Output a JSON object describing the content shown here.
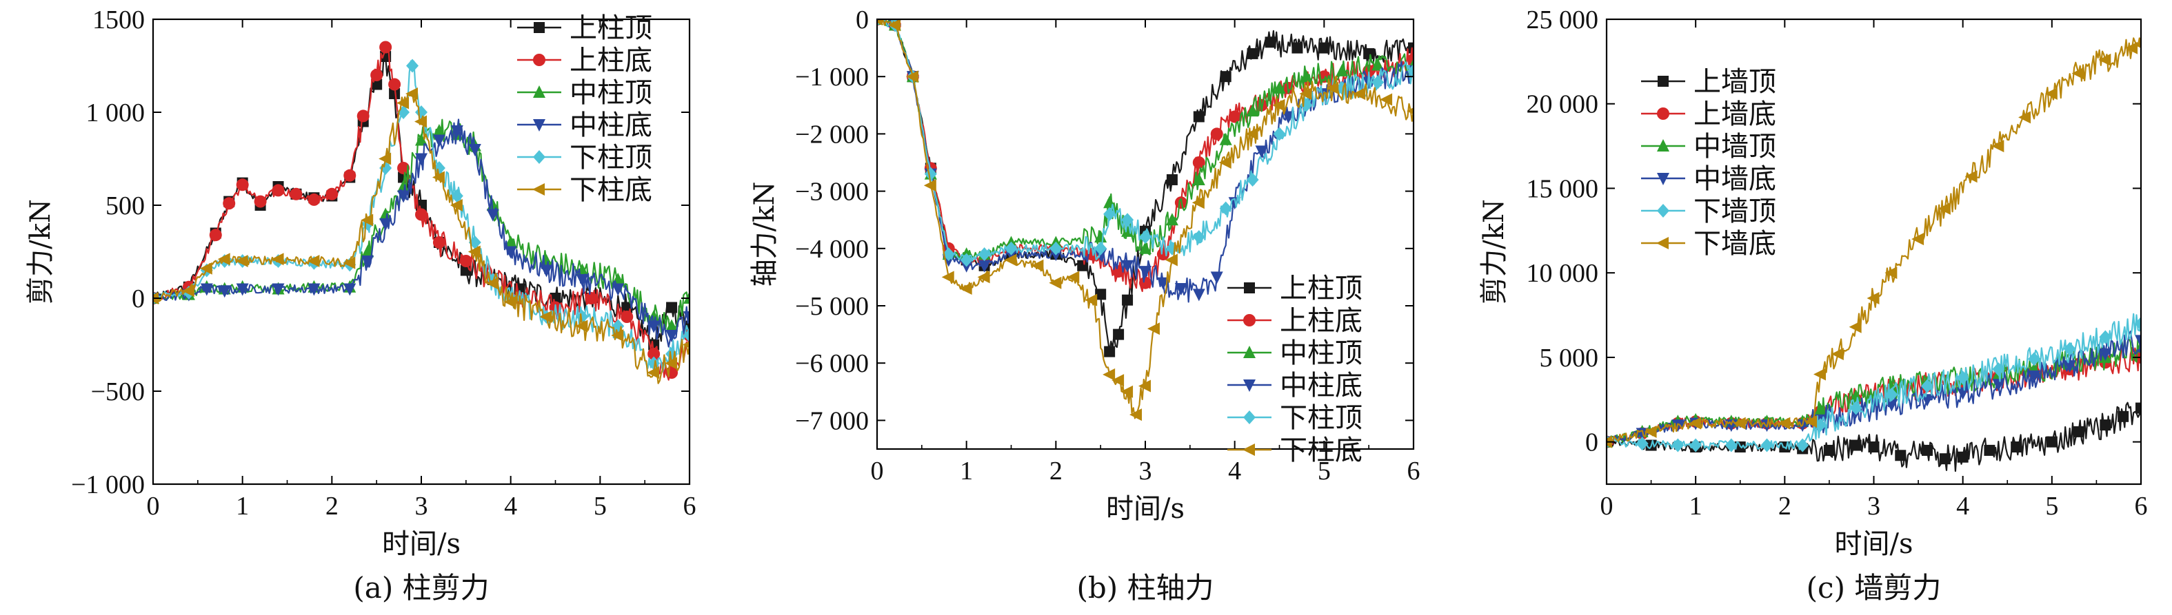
{
  "chart_data": [
    {
      "type": "line",
      "caption": "(a) 柱剪力",
      "xlabel": "时间/s",
      "ylabel": "剪力/kN",
      "xlim": [
        0,
        6
      ],
      "ylim": [
        -1000,
        1500
      ],
      "x_ticks": [
        0,
        1,
        2,
        3,
        4,
        5,
        6
      ],
      "x_tick_labels": [
        "0",
        "1",
        "2",
        "3",
        "4",
        "5",
        "6"
      ],
      "y_ticks": [
        -1000,
        -500,
        0,
        500,
        1000,
        1500
      ],
      "y_tick_labels": [
        "−1 000",
        "−500",
        "0",
        "500",
        "1 000",
        "1500"
      ],
      "legend_position": "top-right",
      "series": [
        {
          "name": "上柱顶",
          "color": "#1a1a1a",
          "marker": "square",
          "x": [
            0,
            0.4,
            0.7,
            0.85,
            1.0,
            1.2,
            1.4,
            1.6,
            1.8,
            2.0,
            2.2,
            2.35,
            2.5,
            2.6,
            2.7,
            2.8,
            3.0,
            3.2,
            3.5,
            3.8,
            4.1,
            4.5,
            4.9,
            5.3,
            5.6,
            5.8,
            6.0
          ],
          "y": [
            0,
            60,
            350,
            520,
            620,
            500,
            600,
            560,
            540,
            550,
            650,
            950,
            1150,
            1300,
            1100,
            650,
            500,
            300,
            150,
            100,
            50,
            0,
            0,
            -50,
            -250,
            -50,
            -150
          ]
        },
        {
          "name": "上柱底",
          "color": "#d62728",
          "marker": "circle",
          "x": [
            0,
            0.4,
            0.7,
            0.85,
            1.0,
            1.2,
            1.4,
            1.6,
            1.8,
            2.0,
            2.2,
            2.35,
            2.5,
            2.6,
            2.7,
            2.8,
            3.0,
            3.2,
            3.5,
            3.8,
            4.1,
            4.5,
            4.9,
            5.3,
            5.6,
            5.8,
            6.0
          ],
          "y": [
            0,
            60,
            340,
            510,
            610,
            520,
            580,
            560,
            530,
            560,
            660,
            980,
            1200,
            1350,
            1150,
            700,
            450,
            300,
            200,
            100,
            0,
            -50,
            0,
            -100,
            -300,
            -400,
            -200
          ]
        },
        {
          "name": "中柱顶",
          "color": "#2ca02c",
          "marker": "triangle-up",
          "x": [
            0,
            0.4,
            0.6,
            0.8,
            1.0,
            1.4,
            1.8,
            2.2,
            2.4,
            2.6,
            2.8,
            3.0,
            3.2,
            3.4,
            3.6,
            3.8,
            4.0,
            4.4,
            4.8,
            5.2,
            5.6,
            5.8,
            6.0
          ],
          "y": [
            0,
            20,
            60,
            50,
            60,
            50,
            60,
            60,
            250,
            450,
            600,
            850,
            900,
            880,
            820,
            500,
            300,
            200,
            150,
            100,
            -100,
            -150,
            0
          ]
        },
        {
          "name": "中柱底",
          "color": "#2a47a0",
          "marker": "triangle-down",
          "x": [
            0,
            0.4,
            0.6,
            0.8,
            1.0,
            1.4,
            1.8,
            2.2,
            2.4,
            2.6,
            2.8,
            3.0,
            3.2,
            3.4,
            3.6,
            3.8,
            4.0,
            4.4,
            4.8,
            5.2,
            5.6,
            5.8,
            6.0
          ],
          "y": [
            0,
            20,
            50,
            40,
            50,
            50,
            50,
            50,
            200,
            400,
            550,
            750,
            850,
            900,
            800,
            450,
            250,
            150,
            100,
            50,
            -150,
            -200,
            -100
          ]
        },
        {
          "name": "下柱顶",
          "color": "#4fc3d8",
          "marker": "diamond",
          "x": [
            0,
            0.4,
            0.6,
            0.8,
            1.0,
            1.4,
            1.8,
            2.2,
            2.4,
            2.6,
            2.8,
            2.9,
            3.0,
            3.2,
            3.4,
            3.6,
            3.8,
            4.0,
            4.4,
            4.8,
            5.2,
            5.6,
            5.8,
            6.0
          ],
          "y": [
            0,
            30,
            150,
            200,
            200,
            200,
            190,
            180,
            400,
            700,
            1000,
            1250,
            1000,
            700,
            550,
            300,
            100,
            0,
            -100,
            -100,
            -150,
            -350,
            -300,
            -200
          ]
        },
        {
          "name": "下柱底",
          "color": "#b8860b",
          "marker": "triangle-left",
          "x": [
            0,
            0.4,
            0.6,
            0.8,
            1.0,
            1.4,
            1.8,
            2.2,
            2.4,
            2.6,
            2.8,
            2.9,
            3.0,
            3.2,
            3.4,
            3.6,
            3.8,
            4.0,
            4.4,
            4.8,
            5.2,
            5.6,
            5.8,
            6.0
          ],
          "y": [
            0,
            40,
            160,
            210,
            200,
            210,
            200,
            190,
            420,
            750,
            1050,
            1100,
            950,
            650,
            500,
            250,
            80,
            -20,
            -100,
            -150,
            -200,
            -400,
            -350,
            -250
          ]
        }
      ]
    },
    {
      "type": "line",
      "caption": "(b) 柱轴力",
      "xlabel": "时间/s",
      "ylabel": "轴力/kN",
      "xlim": [
        0,
        6
      ],
      "ylim": [
        -7500,
        0
      ],
      "x_ticks": [
        0,
        1,
        2,
        3,
        4,
        5,
        6
      ],
      "x_tick_labels": [
        "0",
        "1",
        "2",
        "3",
        "4",
        "5",
        "6"
      ],
      "y_ticks": [
        0,
        -1000,
        -2000,
        -3000,
        -4000,
        -5000,
        -6000,
        -7000
      ],
      "y_tick_labels": [
        "0",
        "−1 000",
        "−2 000",
        "−3 000",
        "−4 000",
        "−5 000",
        "−6 000",
        "−7 000"
      ],
      "legend_position": "bottom-right",
      "series": [
        {
          "name": "上柱顶",
          "color": "#1a1a1a",
          "marker": "square",
          "x": [
            0,
            0.2,
            0.4,
            0.6,
            0.8,
            1.0,
            1.2,
            1.5,
            2.0,
            2.3,
            2.5,
            2.6,
            2.7,
            2.8,
            3.0,
            3.3,
            3.6,
            3.9,
            4.2,
            4.4,
            4.7,
            5.0,
            5.5,
            6.0
          ],
          "y": [
            0,
            -100,
            -1000,
            -2600,
            -4100,
            -4200,
            -4300,
            -4100,
            -4100,
            -4300,
            -4800,
            -5800,
            -5500,
            -4900,
            -3700,
            -2800,
            -1700,
            -1000,
            -600,
            -400,
            -500,
            -500,
            -600,
            -500
          ]
        },
        {
          "name": "上柱底",
          "color": "#d62728",
          "marker": "circle",
          "x": [
            0,
            0.2,
            0.4,
            0.6,
            0.8,
            1.0,
            1.2,
            1.5,
            2.0,
            2.4,
            2.7,
            3.0,
            3.2,
            3.4,
            3.6,
            3.8,
            4.0,
            4.3,
            4.6,
            5.0,
            5.5,
            6.0
          ],
          "y": [
            0,
            -100,
            -1000,
            -2600,
            -4000,
            -4200,
            -4200,
            -4000,
            -4000,
            -4100,
            -4400,
            -4600,
            -4100,
            -3200,
            -2500,
            -2000,
            -1700,
            -1500,
            -1200,
            -1000,
            -900,
            -700
          ]
        },
        {
          "name": "中柱顶",
          "color": "#2ca02c",
          "marker": "triangle-up",
          "x": [
            0,
            0.2,
            0.4,
            0.6,
            0.8,
            1.0,
            1.2,
            1.5,
            2.0,
            2.5,
            2.6,
            2.8,
            3.0,
            3.3,
            3.6,
            3.9,
            4.2,
            4.5,
            4.8,
            5.2,
            5.6,
            6.0
          ],
          "y": [
            0,
            -100,
            -1000,
            -2700,
            -4100,
            -4100,
            -4100,
            -3900,
            -3900,
            -3800,
            -3200,
            -3700,
            -4000,
            -3500,
            -2800,
            -2100,
            -1600,
            -1200,
            -1000,
            -900,
            -800,
            -800
          ]
        },
        {
          "name": "中柱底",
          "color": "#2a47a0",
          "marker": "triangle-down",
          "x": [
            0,
            0.2,
            0.4,
            0.6,
            0.8,
            1.0,
            1.2,
            1.5,
            2.0,
            2.5,
            2.8,
            3.0,
            3.2,
            3.4,
            3.6,
            3.8,
            4.0,
            4.3,
            4.6,
            5.0,
            5.5,
            6.0
          ],
          "y": [
            0,
            -100,
            -1000,
            -2700,
            -4200,
            -4300,
            -4300,
            -4100,
            -4100,
            -4100,
            -4300,
            -4400,
            -4600,
            -4700,
            -4800,
            -4500,
            -3200,
            -2300,
            -1700,
            -1300,
            -1100,
            -900
          ]
        },
        {
          "name": "下柱顶",
          "color": "#4fc3d8",
          "marker": "diamond",
          "x": [
            0,
            0.2,
            0.4,
            0.6,
            0.8,
            1.0,
            1.2,
            1.5,
            2.0,
            2.5,
            2.6,
            2.8,
            3.0,
            3.3,
            3.6,
            3.9,
            4.2,
            4.5,
            4.8,
            5.2,
            5.6,
            6.0
          ],
          "y": [
            0,
            -100,
            -1000,
            -2700,
            -4100,
            -4200,
            -4100,
            -4000,
            -4000,
            -4000,
            -3400,
            -3500,
            -3800,
            -4000,
            -3800,
            -3300,
            -2800,
            -2000,
            -1500,
            -1200,
            -1100,
            -900
          ]
        },
        {
          "name": "下柱底",
          "color": "#b8860b",
          "marker": "triangle-left",
          "x": [
            0,
            0.2,
            0.4,
            0.6,
            0.8,
            1.0,
            1.2,
            1.5,
            1.8,
            2.0,
            2.2,
            2.4,
            2.6,
            2.7,
            2.8,
            2.9,
            3.0,
            3.1,
            3.3,
            3.6,
            3.9,
            4.2,
            4.5,
            4.8,
            5.1,
            5.4,
            5.7,
            6.0
          ],
          "y": [
            0,
            -100,
            -1000,
            -2900,
            -4500,
            -4700,
            -4500,
            -4200,
            -4300,
            -4600,
            -4500,
            -4900,
            -6200,
            -6300,
            -6500,
            -6900,
            -6400,
            -5400,
            -4200,
            -3200,
            -2500,
            -2000,
            -1500,
            -1300,
            -1200,
            -1300,
            -1400,
            -1600
          ]
        }
      ]
    },
    {
      "type": "line",
      "caption": "(c) 墙剪力",
      "xlabel": "时间/s",
      "ylabel": "剪力/kN",
      "xlim": [
        0,
        6
      ],
      "ylim": [
        -2500,
        25000
      ],
      "x_ticks": [
        0,
        1,
        2,
        3,
        4,
        5,
        6
      ],
      "x_tick_labels": [
        "0",
        "1",
        "2",
        "3",
        "4",
        "5",
        "6"
      ],
      "y_ticks": [
        0,
        5000,
        10000,
        15000,
        20000,
        25000
      ],
      "y_tick_labels": [
        "0",
        "5 000",
        "10 000",
        "15 000",
        "20 000",
        "25 000"
      ],
      "legend_position": "top-left",
      "series": [
        {
          "name": "上墙顶",
          "color": "#1a1a1a",
          "marker": "square",
          "x": [
            0,
            0.5,
            1.0,
            1.5,
            2.0,
            2.2,
            2.5,
            2.8,
            3.0,
            3.3,
            3.6,
            3.8,
            4.0,
            4.3,
            4.6,
            5.0,
            5.3,
            5.6,
            5.8,
            6.0
          ],
          "y": [
            0,
            -200,
            -300,
            -300,
            -300,
            -400,
            -500,
            -200,
            -300,
            -800,
            -500,
            -1000,
            -900,
            -500,
            -300,
            0,
            600,
            1000,
            1500,
            2000
          ]
        },
        {
          "name": "上墙底",
          "color": "#d62728",
          "marker": "circle",
          "x": [
            0,
            0.4,
            0.8,
            1.0,
            1.4,
            1.8,
            2.2,
            2.4,
            2.8,
            3.2,
            3.6,
            4.0,
            4.4,
            4.8,
            5.2,
            5.6,
            6.0
          ],
          "y": [
            0,
            500,
            1100,
            1200,
            1100,
            1100,
            1100,
            1800,
            2500,
            3000,
            3300,
            3500,
            3800,
            4100,
            4300,
            4700,
            5000
          ]
        },
        {
          "name": "中墙顶",
          "color": "#2ca02c",
          "marker": "triangle-up",
          "x": [
            0,
            0.4,
            0.8,
            1.0,
            1.4,
            1.8,
            2.2,
            2.4,
            2.8,
            3.2,
            3.6,
            4.0,
            4.4,
            4.8,
            5.2,
            5.6,
            6.0
          ],
          "y": [
            0,
            600,
            1200,
            1300,
            1200,
            1200,
            1200,
            1900,
            2700,
            3200,
            3500,
            3700,
            4000,
            4300,
            4600,
            5000,
            5600
          ]
        },
        {
          "name": "中墙底",
          "color": "#2a47a0",
          "marker": "triangle-down",
          "x": [
            0,
            0.4,
            0.8,
            1.0,
            1.4,
            1.8,
            2.2,
            2.4,
            2.8,
            3.2,
            3.6,
            4.0,
            4.4,
            4.8,
            5.2,
            5.6,
            6.0
          ],
          "y": [
            0,
            500,
            1000,
            1100,
            1000,
            1000,
            1000,
            1300,
            1800,
            2200,
            2500,
            2900,
            3400,
            3900,
            4500,
            5200,
            6000
          ]
        },
        {
          "name": "下墙顶",
          "color": "#4fc3d8",
          "marker": "diamond",
          "x": [
            0,
            0.4,
            0.8,
            1.0,
            1.4,
            1.8,
            2.2,
            2.4,
            2.8,
            3.2,
            3.6,
            4.0,
            4.4,
            4.8,
            5.2,
            5.6,
            6.0
          ],
          "y": [
            0,
            -100,
            -200,
            -200,
            -200,
            -200,
            -200,
            1000,
            2000,
            2800,
            3300,
            3800,
            4300,
            4900,
            5500,
            6200,
            7000
          ]
        },
        {
          "name": "下墙底",
          "color": "#b8860b",
          "marker": "triangle-left",
          "x": [
            0,
            0.5,
            1.0,
            1.5,
            2.0,
            2.3,
            2.4,
            2.6,
            2.8,
            3.0,
            3.2,
            3.5,
            3.8,
            4.1,
            4.4,
            4.7,
            5.0,
            5.3,
            5.6,
            5.9,
            6.0
          ],
          "y": [
            0,
            600,
            1100,
            1100,
            1100,
            1200,
            4000,
            5200,
            6800,
            8500,
            10000,
            12000,
            13800,
            15700,
            17500,
            19200,
            20600,
            21800,
            22600,
            23300,
            23500
          ]
        }
      ]
    }
  ]
}
